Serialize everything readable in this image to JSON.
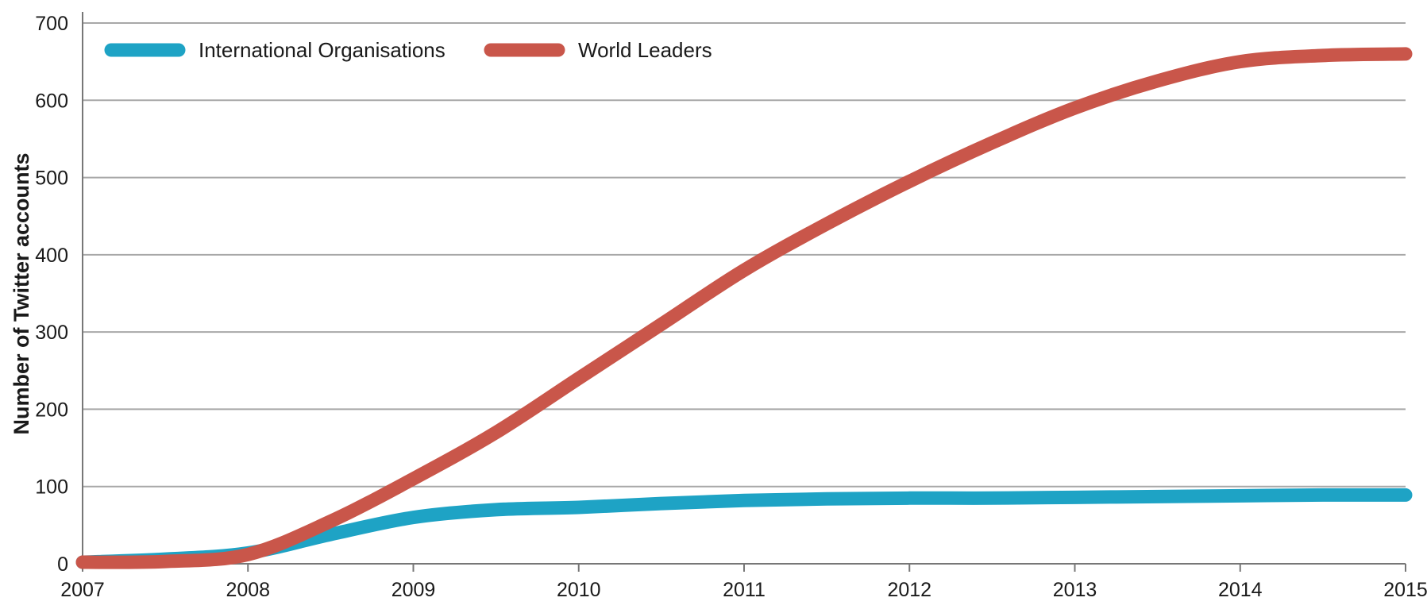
{
  "chart_data": {
    "type": "line",
    "title": "",
    "xlabel": "",
    "ylabel": "Number of Twitter accounts",
    "x": [
      2007,
      2007.5,
      2008,
      2008.5,
      2009,
      2009.5,
      2010,
      2010.5,
      2011,
      2011.5,
      2012,
      2012.5,
      2013,
      2013.5,
      2014,
      2014.5,
      2015
    ],
    "x_ticks": [
      "2007",
      "2008",
      "2009",
      "2010",
      "2011",
      "2012",
      "2013",
      "2014",
      "2015"
    ],
    "y_ticks": [
      "0",
      "100",
      "200",
      "300",
      "400",
      "500",
      "600",
      "700"
    ],
    "xlim": [
      2007,
      2015
    ],
    "ylim": [
      0,
      700
    ],
    "grid": true,
    "legend_position": "top-left",
    "series": [
      {
        "name": "International Organisations",
        "color": "#1ea3c5",
        "values": [
          2,
          6,
          14,
          38,
          60,
          70,
          73,
          78,
          82,
          84,
          85,
          85,
          86,
          87,
          88,
          89,
          89
        ]
      },
      {
        "name": "World Leaders",
        "color": "#c9564a",
        "values": [
          2,
          3,
          12,
          55,
          110,
          170,
          240,
          310,
          380,
          440,
          495,
          545,
          590,
          625,
          650,
          658,
          660
        ]
      }
    ]
  }
}
